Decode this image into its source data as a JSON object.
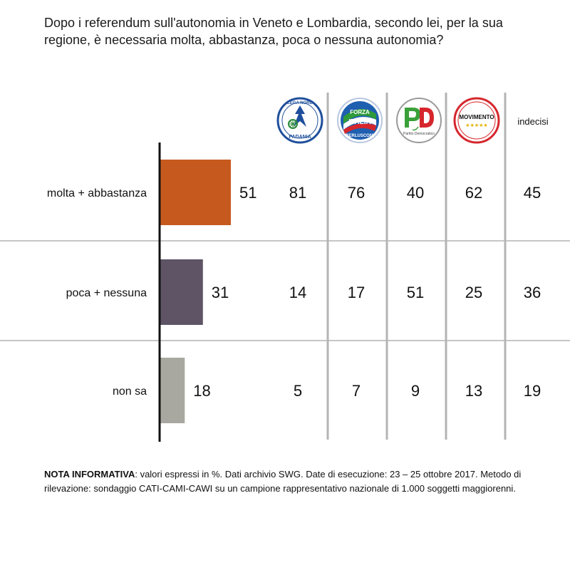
{
  "question": "Dopo i referendum sull'autonomia in Veneto e Lombardia, secondo lei, per la sua regione, è necessaria molta, abbastanza, poca o nessuna autonomia?",
  "parties": [
    {
      "id": "lega",
      "name": "Lega Nord",
      "logo_text_top": "LEGA NORD",
      "logo_text_bottom": "PADANIA",
      "colors": {
        "ring": "#1f4f9c",
        "fill": "#ffffff",
        "accent": "#2e8b3a"
      }
    },
    {
      "id": "forza-italia",
      "name": "Forza Italia",
      "logo_text_top": "FORZA",
      "logo_text_middle": "ITALIA",
      "logo_text_bottom": "BERLUSCONI",
      "colors": {
        "ring": "#1f5fb0",
        "fill": "#1f5fb0",
        "accent": "#d6262d"
      }
    },
    {
      "id": "pd",
      "name": "Partito Democratico",
      "logo_text_top": "PD",
      "logo_text_bottom": "Partito Democratico",
      "colors": {
        "ring": "#888888",
        "fill": "#ffffff",
        "accent": "#3aa03a",
        "accent2": "#d6262d"
      }
    },
    {
      "id": "m5s",
      "name": "MoVimento 5 Stelle",
      "logo_text_top": "MOVIMENTO",
      "logo_text_bottom": "★★★★★",
      "colors": {
        "ring": "#d6262d",
        "fill": "#ffffff",
        "accent": "#e2b100"
      }
    },
    {
      "id": "indecisi",
      "name": "indecisi",
      "label": "indecisi"
    }
  ],
  "chart_data": {
    "type": "bar",
    "orientation": "horizontal",
    "categories": [
      "molta + abbastanza",
      "poca + nessuna",
      "non sa"
    ],
    "values": [
      51,
      31,
      18
    ],
    "bar_colors": [
      "#c65a1e",
      "#5e5466",
      "#a9a8a0"
    ],
    "xlim": [
      0,
      100
    ],
    "table_columns": [
      "Lega Nord",
      "Forza Italia",
      "Partito Democratico",
      "MoVimento 5 Stelle",
      "indecisi"
    ],
    "table": [
      [
        81,
        76,
        40,
        62,
        45
      ],
      [
        14,
        17,
        51,
        25,
        36
      ],
      [
        5,
        7,
        9,
        13,
        19
      ]
    ]
  },
  "note": {
    "label": "NOTA INFORMATIVA",
    "text": ": valori espressi in %. Dati archivio SWG. Date di esecuzione: 23 – 25 ottobre 2017. Metodo di rilevazione: sondaggio CATI-CAMI-CAWI su un campione rappresentativo nazionale di 1.000 soggetti maggiorenni."
  }
}
